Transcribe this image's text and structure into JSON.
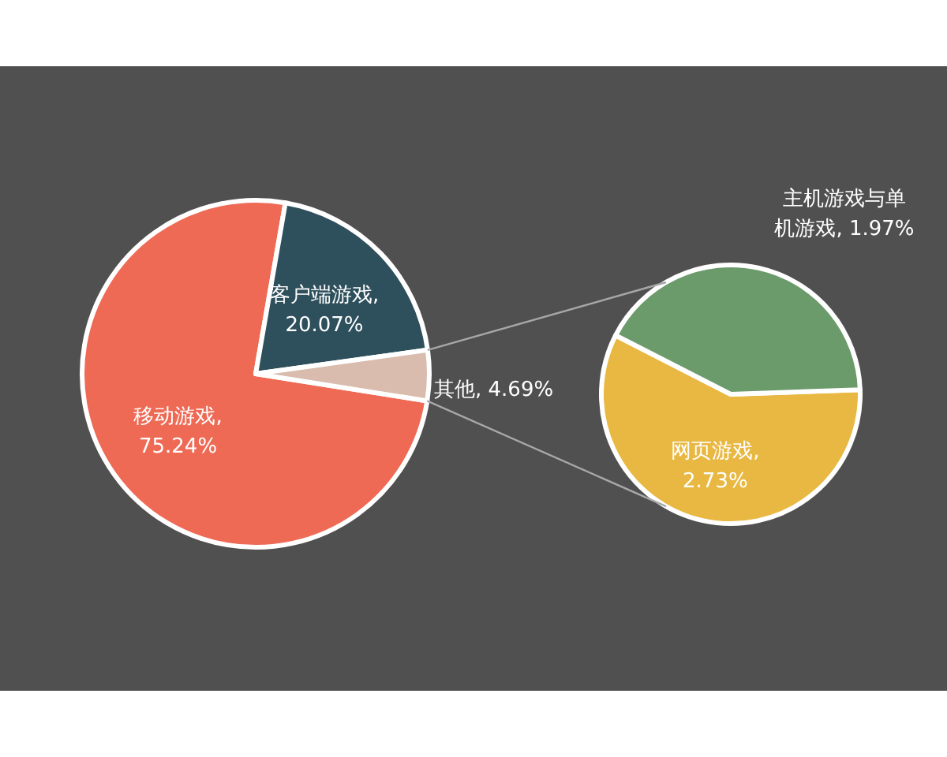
{
  "chart_data": [
    {
      "type": "pie",
      "categories": [
        "移动游戏",
        "客户端游戏",
        "其他"
      ],
      "values": [
        75.24,
        20.07,
        4.69
      ],
      "colors": [
        "#ee6a55",
        "#2e4f5c",
        "#d9bcae"
      ],
      "value_labels": [
        ", 75.24%",
        ", 20.07%",
        ", 4.69%"
      ]
    },
    {
      "type": "pie",
      "categories": [
        "网页游戏",
        "主机游戏与单机游戏"
      ],
      "values": [
        2.73,
        1.97
      ],
      "colors": [
        "#e8b843",
        "#6b9a6b"
      ],
      "value_labels": [
        ", 2.73%",
        ", 1.97%"
      ]
    }
  ]
}
